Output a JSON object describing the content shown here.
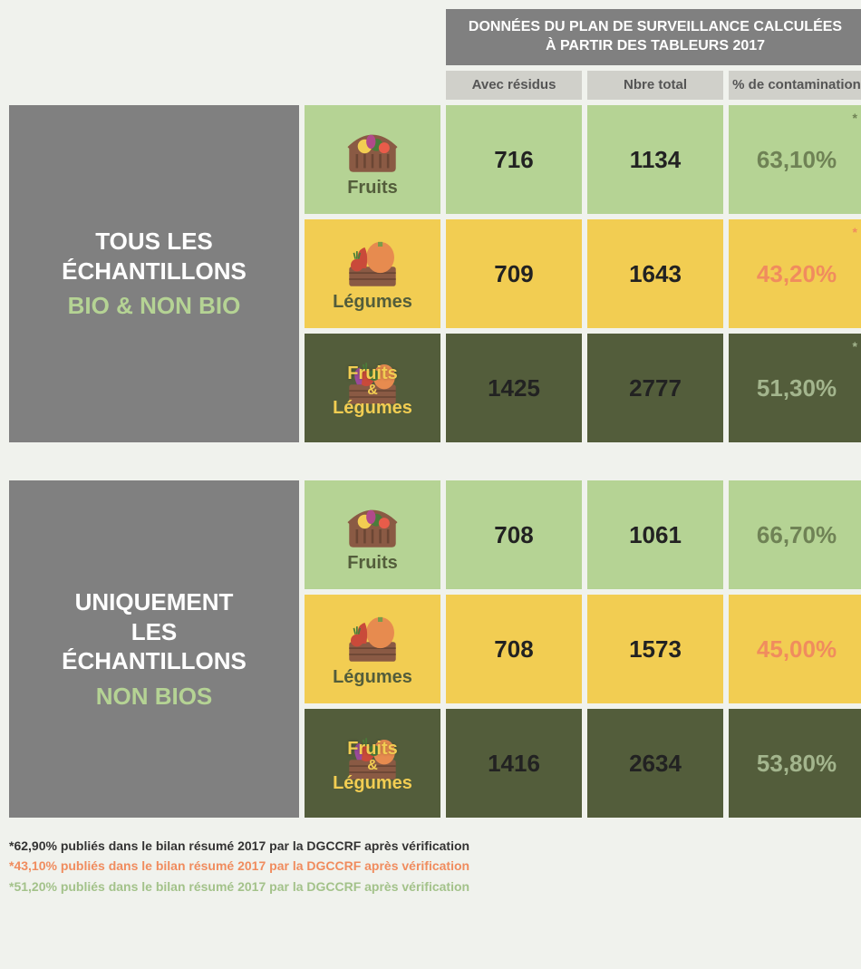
{
  "colors": {
    "lightGreen": "#b5d394",
    "yellow": "#f2cd52",
    "darkOlive": "#535d3b",
    "gray": "#808080",
    "headGray": "#d0d0ca",
    "brown": "#8a5a44",
    "orange": "#e78b4f",
    "pctGreen": "#6f8255",
    "pctOrange": "#f08c5e",
    "pctDarkGreen": "#a3b58d",
    "footDark": "#333333",
    "footOrange": "#f08c5e",
    "footGreen": "#a3c28a",
    "subGreen": "#b5d394",
    "black": "#222222",
    "legumeLabel": "#f2cd52"
  },
  "header": {
    "title": "DONNÉES DU PLAN DE SURVEILLANCE CALCULÉES À PARTIR DES TABLEURS 2017",
    "col1": "Avec résidus",
    "col2": "Nbre total",
    "col3": "% de contamination"
  },
  "groups": [
    {
      "titleLine1": "TOUS LES",
      "titleLine2": "ÉCHANTILLONS",
      "sub": "BIO & NON BIO",
      "rows": [
        {
          "type": "fruits",
          "label": "Fruits",
          "labelColor": "#535d3b",
          "bg": "#b5d394",
          "v1": "716",
          "v2": "1134",
          "pct": "63,10%",
          "pctColor": "#6f8255",
          "star": true
        },
        {
          "type": "legumes",
          "label": "Légumes",
          "labelColor": "#535d3b",
          "bg": "#f2cd52",
          "v1": "709",
          "v2": "1643",
          "pct": "43,20%",
          "pctColor": "#f08c5e",
          "star": true
        },
        {
          "type": "both",
          "label1": "Fruits",
          "amp": "&",
          "label2": "Légumes",
          "labelColor": "#f2cd52",
          "bg": "#535d3b",
          "v1": "1425",
          "v2": "2777",
          "pct": "51,30%",
          "pctColor": "#a3b58d",
          "star": true
        }
      ]
    },
    {
      "titleLine1": "UNIQUEMENT",
      "titleLine2": "LES",
      "titleLine3": "ÉCHANTILLONS",
      "sub": "NON BIOS",
      "rows": [
        {
          "type": "fruits",
          "label": "Fruits",
          "labelColor": "#535d3b",
          "bg": "#b5d394",
          "v1": "708",
          "v2": "1061",
          "pct": "66,70%",
          "pctColor": "#6f8255",
          "star": false
        },
        {
          "type": "legumes",
          "label": "Légumes",
          "labelColor": "#535d3b",
          "bg": "#f2cd52",
          "v1": "708",
          "v2": "1573",
          "pct": "45,00%",
          "pctColor": "#f08c5e",
          "star": false
        },
        {
          "type": "both",
          "label1": "Fruits",
          "amp": "&",
          "label2": "Légumes",
          "labelColor": "#f2cd52",
          "bg": "#535d3b",
          "v1": "1416",
          "v2": "2634",
          "pct": "53,80%",
          "pctColor": "#a3b58d",
          "star": false
        }
      ]
    }
  ],
  "footnotes": [
    {
      "text": "*62,90% publiés dans le bilan résumé 2017 par la DGCCRF après vérification",
      "color": "#333333"
    },
    {
      "text": "*43,10% publiés dans le bilan résumé 2017 par la DGCCRF après vérification",
      "color": "#f08c5e"
    },
    {
      "text": "*51,20% publiés dans le bilan résumé 2017 par la DGCCRF après vérification",
      "color": "#a3c28a"
    }
  ]
}
